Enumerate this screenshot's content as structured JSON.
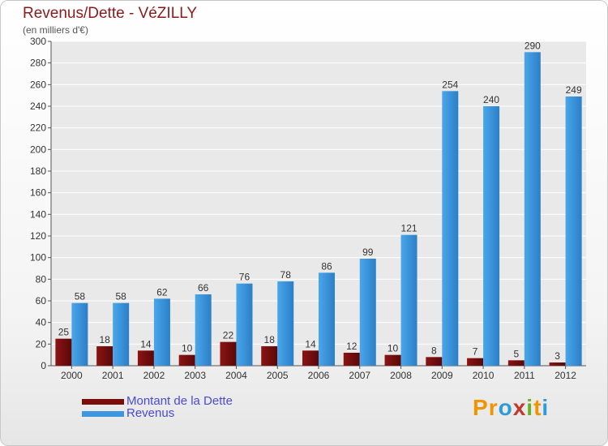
{
  "chart_data": {
    "type": "bar",
    "title": "Revenus/Dette - VéZILLY",
    "subtitle": "(en milliers d'€)",
    "categories": [
      "2000",
      "2001",
      "2002",
      "2003",
      "2004",
      "2005",
      "2006",
      "2007",
      "2008",
      "2009",
      "2010",
      "2011",
      "2012"
    ],
    "series": [
      {
        "name": "Montant de la Dette",
        "color": "#7a0c0c",
        "values": [
          25,
          18,
          14,
          10,
          22,
          18,
          14,
          12,
          10,
          8,
          7,
          5,
          3
        ]
      },
      {
        "name": "Revenus",
        "color": "#3d97e0",
        "values": [
          58,
          58,
          62,
          66,
          76,
          78,
          86,
          99,
          121,
          254,
          240,
          290,
          249
        ]
      }
    ],
    "ylim": [
      0,
      300
    ],
    "yticks": [
      0,
      20,
      40,
      60,
      80,
      100,
      120,
      140,
      160,
      180,
      200,
      220,
      240,
      260,
      280,
      300
    ],
    "grid": true,
    "legend": "bottom-left"
  },
  "legend": {
    "dette_label": "Montant de la Dette",
    "revenus_label": "Revenus"
  },
  "brand": {
    "letters": [
      "P",
      "r",
      "o",
      "x",
      "i",
      "t",
      "i"
    ],
    "colors": [
      "#f29400",
      "#f29400",
      "#2d9bd6",
      "#c0392b",
      "#6ab023",
      "#f29400",
      "#2d9bd6"
    ]
  }
}
